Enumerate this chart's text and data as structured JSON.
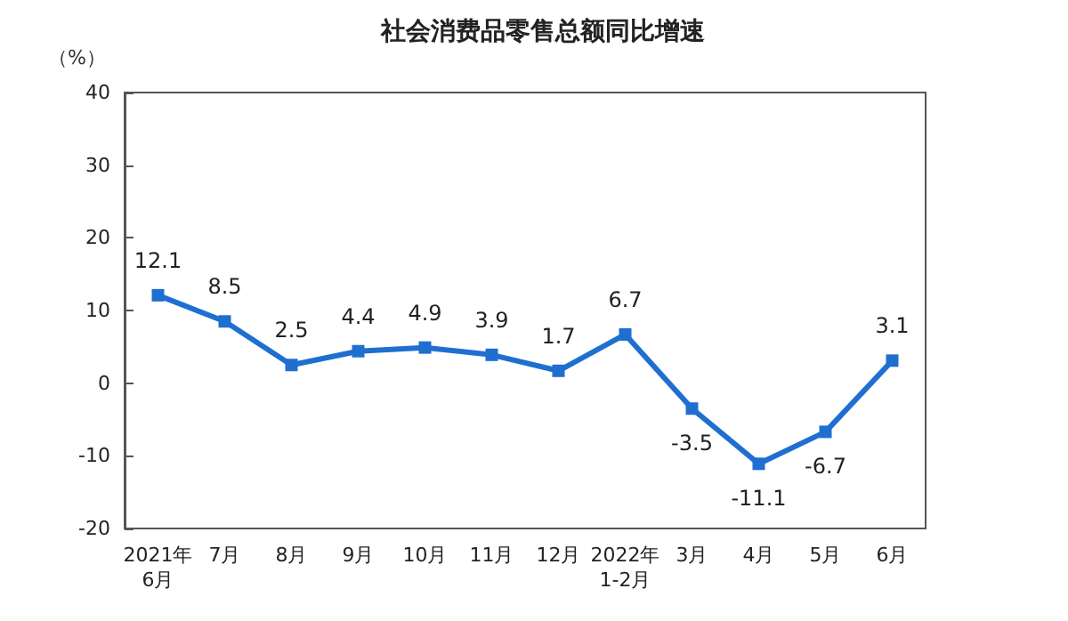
{
  "chart_data": {
    "type": "line",
    "title": "社会消费品零售总额同比增速",
    "ylabel": "（%）",
    "categories": [
      "2021年\n6月",
      "7月",
      "8月",
      "9月",
      "10月",
      "11月",
      "12月",
      "2022年\n1-2月",
      "3月",
      "4月",
      "5月",
      "6月"
    ],
    "series": [
      {
        "color": "#1f6fd1",
        "values": [
          12.1,
          8.5,
          2.5,
          4.4,
          4.9,
          3.9,
          1.7,
          6.7,
          -3.5,
          -11.1,
          -6.7,
          3.1
        ]
      }
    ],
    "ylim": [
      -20,
      40
    ],
    "yticks": [
      -20,
      -10,
      0,
      10,
      20,
      30,
      40
    ],
    "grid": false,
    "marker": "square",
    "line_style": "solid",
    "data_labels": true
  }
}
